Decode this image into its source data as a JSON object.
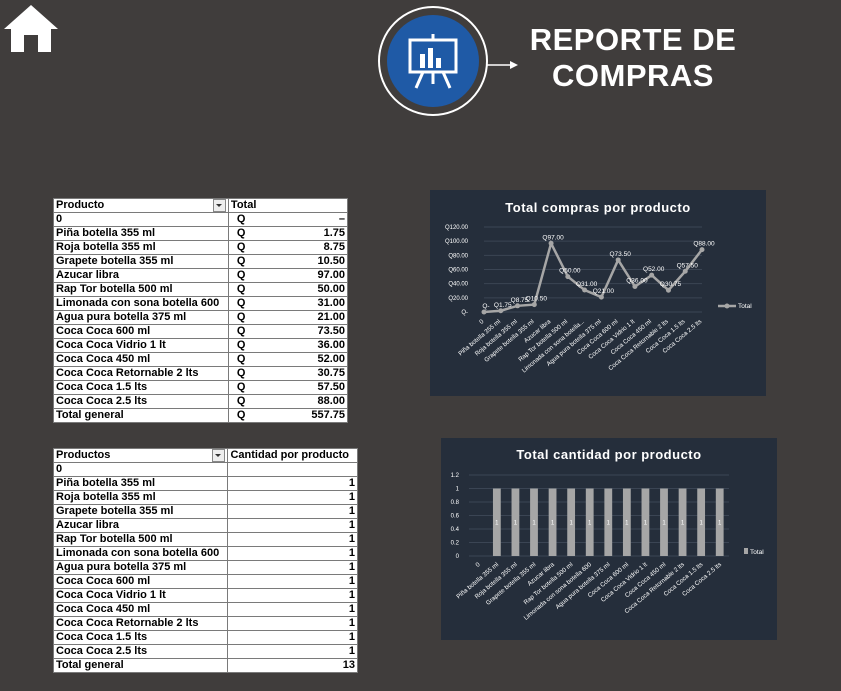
{
  "header": {
    "title_line1": "REPORTE DE",
    "title_line2": "COMPRAS"
  },
  "table1": {
    "headers": [
      "Producto",
      "Total"
    ],
    "rows": [
      {
        "label": "0",
        "q": "Q",
        "value": "–"
      },
      {
        "label": "Piña botella 355 ml",
        "q": "Q",
        "value": "1.75"
      },
      {
        "label": "Roja botella 355 ml",
        "q": "Q",
        "value": "8.75"
      },
      {
        "label": "Grapete botella 355 ml",
        "q": "Q",
        "value": "10.50"
      },
      {
        "label": "Azucar libra",
        "q": "Q",
        "value": "97.00"
      },
      {
        "label": "Rap Tor botella 500 ml",
        "q": "Q",
        "value": "50.00"
      },
      {
        "label": "Limonada con sona botella 600",
        "q": "Q",
        "value": "31.00"
      },
      {
        "label": "Agua pura botella 375 ml",
        "q": "Q",
        "value": "21.00"
      },
      {
        "label": "Coca Coca 600 ml",
        "q": "Q",
        "value": "73.50"
      },
      {
        "label": "Coca Coca Vidrio 1 lt",
        "q": "Q",
        "value": "36.00"
      },
      {
        "label": "Coca Coca 450 ml",
        "q": "Q",
        "value": "52.00"
      },
      {
        "label": "Coca Coca Retornable 2 lts",
        "q": "Q",
        "value": "30.75"
      },
      {
        "label": "Coca Coca 1.5 lts",
        "q": "Q",
        "value": "57.50"
      },
      {
        "label": "Coca Coca 2.5 lts",
        "q": "Q",
        "value": "88.00"
      }
    ],
    "total": {
      "label": "Total general",
      "q": "Q",
      "value": "557.75"
    }
  },
  "table2": {
    "headers": [
      "Productos",
      "Cantidad por producto"
    ],
    "rows": [
      {
        "label": "0",
        "value": ""
      },
      {
        "label": "Piña botella 355 ml",
        "value": "1"
      },
      {
        "label": "Roja botella 355 ml",
        "value": "1"
      },
      {
        "label": "Grapete botella 355 ml",
        "value": "1"
      },
      {
        "label": "Azucar libra",
        "value": "1"
      },
      {
        "label": "Rap Tor botella 500 ml",
        "value": "1"
      },
      {
        "label": "Limonada con sona botella 600",
        "value": "1"
      },
      {
        "label": "Agua pura botella 375 ml",
        "value": "1"
      },
      {
        "label": "Coca Coca 600 ml",
        "value": "1"
      },
      {
        "label": "Coca Coca Vidrio 1 lt",
        "value": "1"
      },
      {
        "label": "Coca Coca 450 ml",
        "value": "1"
      },
      {
        "label": "Coca Coca Retornable 2 lts",
        "value": "1"
      },
      {
        "label": "Coca Coca 1.5 lts",
        "value": "1"
      },
      {
        "label": "Coca Coca 2.5 lts",
        "value": "1"
      }
    ],
    "total": {
      "label": "Total general",
      "value": "13"
    }
  },
  "chart_data": [
    {
      "type": "line",
      "title": "Total compras por producto",
      "categories": [
        "0",
        "Piña botella 355 ml",
        "Roja botella 355 ml",
        "Grapete botella 355 ml",
        "Azucar libra",
        "Rap Tor botella 500 ml",
        "Limonada con sona botella...",
        "Agua pura botella 375 ml",
        "Coca Coca 600 ml",
        "Coca Coca Vidrio 1 lt",
        "Coca Coca 450 ml",
        "Coca Coca Retornable 2 lts",
        "Coca Coca 1.5 lts",
        "Coca Coca 2.5 lts"
      ],
      "series": [
        {
          "name": "Total",
          "values": [
            0,
            1.75,
            8.75,
            10.5,
            97,
            50,
            31,
            21,
            73.5,
            36,
            52,
            30.75,
            57.5,
            88
          ]
        }
      ],
      "data_labels": [
        "Q-",
        "Q1.75",
        "Q8.75",
        "Q10.50",
        "Q97.00",
        "Q50.00",
        "Q31.00",
        "Q21.00",
        "Q73.50",
        "Q36.00",
        "Q52.00",
        "Q30.75",
        "Q57.50",
        "Q88.00"
      ],
      "y_ticks": [
        "Q-",
        "Q20.00",
        "Q40.00",
        "Q60.00",
        "Q80.00",
        "Q100.00",
        "Q120.00"
      ],
      "ylim": [
        0,
        120
      ],
      "legend": "right",
      "colors": {
        "line": "#a6a6a6",
        "background": "#252e3b",
        "text": "#ffffff",
        "grid": "#3b4554"
      }
    },
    {
      "type": "bar",
      "title": "Total cantidad por producto",
      "categories": [
        "0",
        "Piña botella 355 ml",
        "Roja botella 355 ml",
        "Grapete botella 355 ml",
        "Azucar libra",
        "Rap Tor botella 500 ml",
        "Limonada con sona botella 600",
        "Agua pura botella 375 ml",
        "Coca Coca 600 ml",
        "Coca Coca Vidrio 1 lt",
        "Coca Coca 450 ml",
        "Coca Coca Retornable 2 lts",
        "Coca Coca 1.5 lts",
        "Coca Coca 2.5 lts"
      ],
      "series": [
        {
          "name": "Total",
          "values": [
            0,
            1,
            1,
            1,
            1,
            1,
            1,
            1,
            1,
            1,
            1,
            1,
            1,
            1
          ]
        }
      ],
      "data_labels": [
        "",
        "1",
        "1",
        "1",
        "1",
        "1",
        "1",
        "1",
        "1",
        "1",
        "1",
        "1",
        "1",
        "1"
      ],
      "y_ticks": [
        "0",
        "0.2",
        "0.4",
        "0.6",
        "0.8",
        "1",
        "1.2"
      ],
      "ylim": [
        0,
        1.2
      ],
      "legend": "right",
      "colors": {
        "bar": "#a6a6a6",
        "background": "#252e3b",
        "text": "#ffffff",
        "grid": "#3b4554"
      }
    }
  ]
}
